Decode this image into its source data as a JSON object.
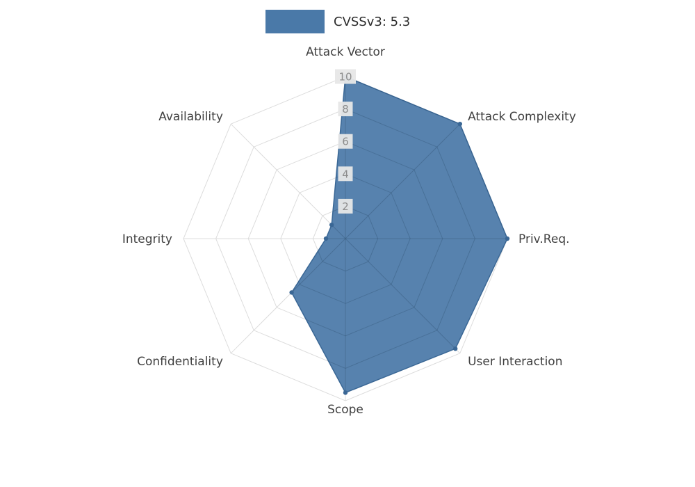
{
  "legend": {
    "label": "CVSSv3: 5.3",
    "swatch_color": "#4a79a8"
  },
  "chart_data": {
    "type": "radar",
    "title": "CVSSv3: 5.3",
    "categories": [
      "Attack Vector",
      "Attack Complexity",
      "Priv.Req.",
      "User Interaction",
      "Scope",
      "Confidentiality",
      "Integrity",
      "Availability"
    ],
    "series": [
      {
        "name": "CVSSv3: 5.3",
        "values": [
          10,
          10,
          10,
          9.6,
          9.5,
          4.7,
          1.2,
          1.2
        ]
      }
    ],
    "radial_ticks": [
      2,
      4,
      6,
      8,
      10
    ],
    "rlim": [
      0,
      10
    ],
    "direction": "clockwise",
    "start_axis": "top",
    "legend_position": "top",
    "grid": true,
    "fill_color": "#4a79a8",
    "outline_color": "#3a6795",
    "grid_color": "#dcdcdc",
    "axis_label_color": "#404040",
    "tick_label_color": "#8c8c8c",
    "tick_label_bg": "#e7e7e7"
  }
}
